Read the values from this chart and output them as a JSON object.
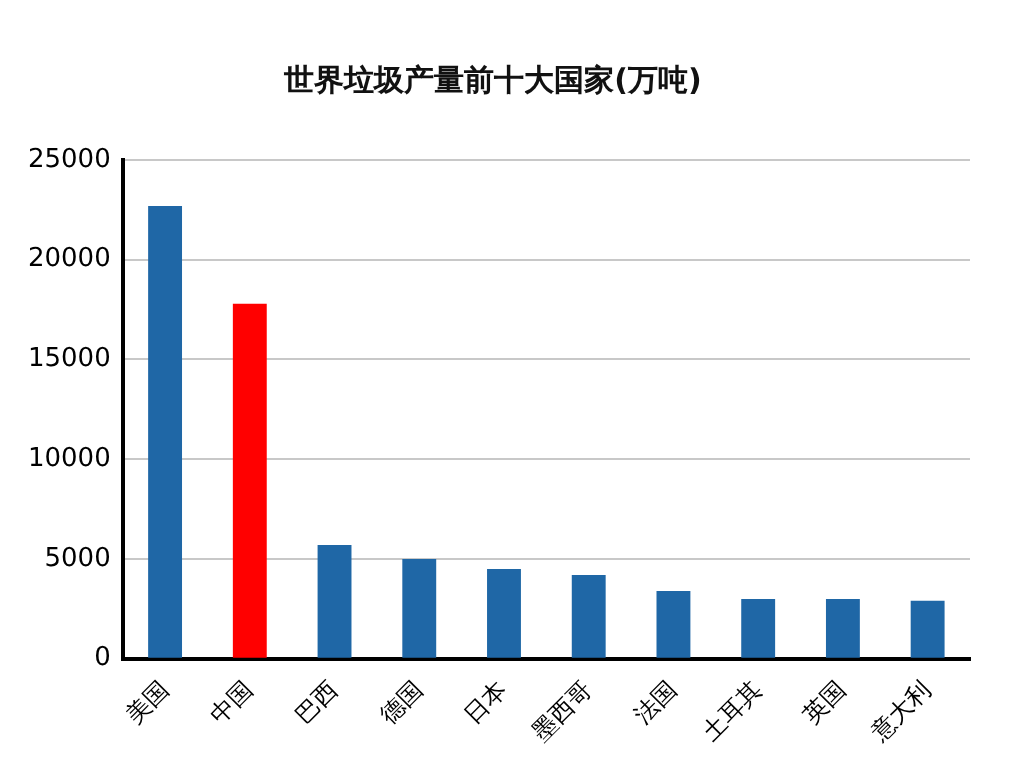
{
  "chart_data": {
    "type": "bar",
    "title": "世界垃圾产量前十大国家(万吨)",
    "categories": [
      "美国",
      "中国",
      "巴西",
      "德国",
      "日本",
      "墨西哥",
      "法国",
      "土耳其",
      "英国",
      "意大利"
    ],
    "values": [
      22700,
      17800,
      5700,
      5000,
      4500,
      4200,
      3400,
      3000,
      3000,
      2900
    ],
    "colors": [
      "#1f67a6",
      "#ff0000",
      "#1f67a6",
      "#1f67a6",
      "#1f67a6",
      "#1f67a6",
      "#1f67a6",
      "#1f67a6",
      "#1f67a6",
      "#1f67a6"
    ],
    "ylim": [
      0,
      25000
    ],
    "yticks": [
      0,
      5000,
      10000,
      15000,
      20000,
      25000
    ],
    "grid": "y",
    "legend": false
  }
}
